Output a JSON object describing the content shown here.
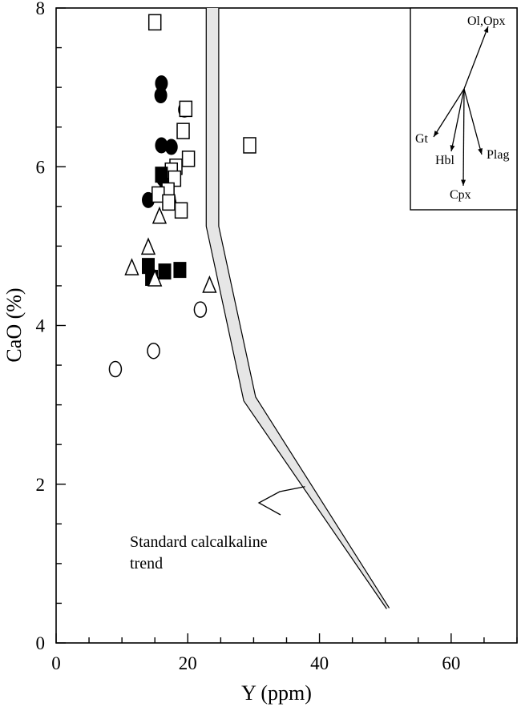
{
  "chart_data": {
    "type": "scatter",
    "xlabel": "Y (ppm)",
    "ylabel": "CaO (%)",
    "xlim": [
      0,
      70
    ],
    "ylim": [
      0,
      8
    ],
    "x_ticks": [
      "0",
      "20",
      "40",
      "60"
    ],
    "y_ticks": [
      "0",
      "2",
      "4",
      "6",
      "8"
    ],
    "grid": false,
    "legend": "none",
    "series": [
      {
        "marker": "filled-circle",
        "points": [
          [
            16.0,
            7.05
          ],
          [
            15.9,
            6.9
          ],
          [
            19.5,
            6.72
          ],
          [
            16.0,
            6.27
          ],
          [
            17.5,
            6.25
          ],
          [
            16.2,
            5.85
          ],
          [
            17.2,
            5.6
          ],
          [
            14.0,
            5.58
          ],
          [
            17.3,
            5.55
          ],
          [
            16.6,
            5.8
          ]
        ]
      },
      {
        "marker": "open-square",
        "points": [
          [
            15.0,
            7.82
          ],
          [
            19.7,
            6.73
          ],
          [
            19.3,
            6.45
          ],
          [
            29.4,
            6.27
          ],
          [
            20.1,
            6.1
          ],
          [
            18.2,
            6.0
          ],
          [
            17.5,
            5.95
          ],
          [
            18.0,
            5.85
          ],
          [
            17.0,
            5.7
          ],
          [
            15.5,
            5.65
          ],
          [
            19.0,
            5.45
          ],
          [
            17.1,
            5.55
          ]
        ]
      },
      {
        "marker": "filled-square",
        "points": [
          [
            16.0,
            5.9
          ],
          [
            14.0,
            4.75
          ],
          [
            14.5,
            4.6
          ],
          [
            16.5,
            4.68
          ],
          [
            18.8,
            4.7
          ]
        ]
      },
      {
        "marker": "open-triangle",
        "points": [
          [
            11.5,
            4.72
          ],
          [
            14.0,
            4.98
          ],
          [
            15.7,
            5.37
          ],
          [
            15.0,
            4.58
          ],
          [
            23.3,
            4.5
          ]
        ]
      },
      {
        "marker": "open-circle",
        "points": [
          [
            9.0,
            3.45
          ],
          [
            14.8,
            3.68
          ],
          [
            21.9,
            4.2
          ]
        ]
      }
    ],
    "trend_band": {
      "left_edge": [
        [
          22.8,
          8.0
        ],
        [
          22.8,
          5.25
        ],
        [
          28.5,
          3.05
        ],
        [
          50.2,
          0.43
        ]
      ],
      "right_edge": [
        [
          24.7,
          8.0
        ],
        [
          24.7,
          5.25
        ],
        [
          30.3,
          3.1
        ],
        [
          50.6,
          0.44
        ]
      ]
    },
    "annotation": {
      "lines": [
        "Standard calcalkaline",
        "trend"
      ],
      "pointer_target": [
        37.8,
        1.97
      ]
    },
    "inset": {
      "center_label": "",
      "vectors": [
        {
          "label": "Ol,Opx"
        },
        {
          "label": "Gt"
        },
        {
          "label": "Hbl"
        },
        {
          "label": "Cpx"
        },
        {
          "label": "Plag"
        }
      ]
    }
  }
}
